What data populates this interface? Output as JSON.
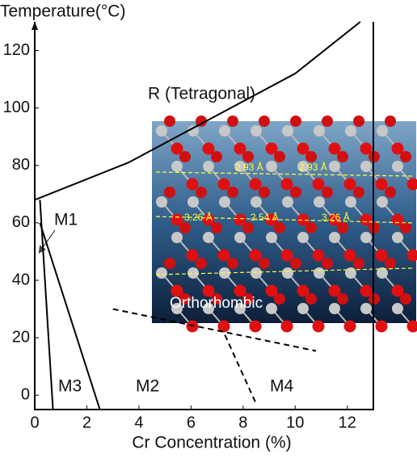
{
  "chart_data": {
    "type": "line",
    "title": "Temperature(°C)",
    "x_label": "Cr Concentration (%)",
    "xlim": [
      0,
      13
    ],
    "xticks": [
      0,
      2,
      4,
      6,
      8,
      10,
      12
    ],
    "ylim": [
      -5,
      130
    ],
    "yticks": [
      0,
      20,
      40,
      60,
      80,
      100,
      120
    ],
    "color": "#000000",
    "series": [
      {
        "x": [
          0,
          3.6,
          10,
          12.5
        ],
        "values": [
          68,
          81,
          112,
          130
        ],
        "dash": false
      },
      {
        "x": [
          0.2,
          0.7
        ],
        "values": [
          68,
          -5
        ],
        "dash": false
      },
      {
        "x": [
          0.2,
          2.5
        ],
        "values": [
          60,
          -5
        ],
        "dash": false
      },
      {
        "x": [
          3.0,
          10.8
        ],
        "values": [
          30,
          15.4
        ],
        "dash": true
      },
      {
        "x": [
          7.3,
          8.5
        ],
        "values": [
          21,
          -3
        ],
        "dash": true
      }
    ],
    "annotations": [
      "R (Tetragonal)",
      "M1",
      "M3",
      "M2",
      "M4"
    ],
    "inset": {
      "labels": [
        "2.93 Å",
        "2.93 Å",
        "3.26 Å",
        "2.54 Å",
        "3.26 Å",
        "Orthorhombic"
      ]
    }
  }
}
